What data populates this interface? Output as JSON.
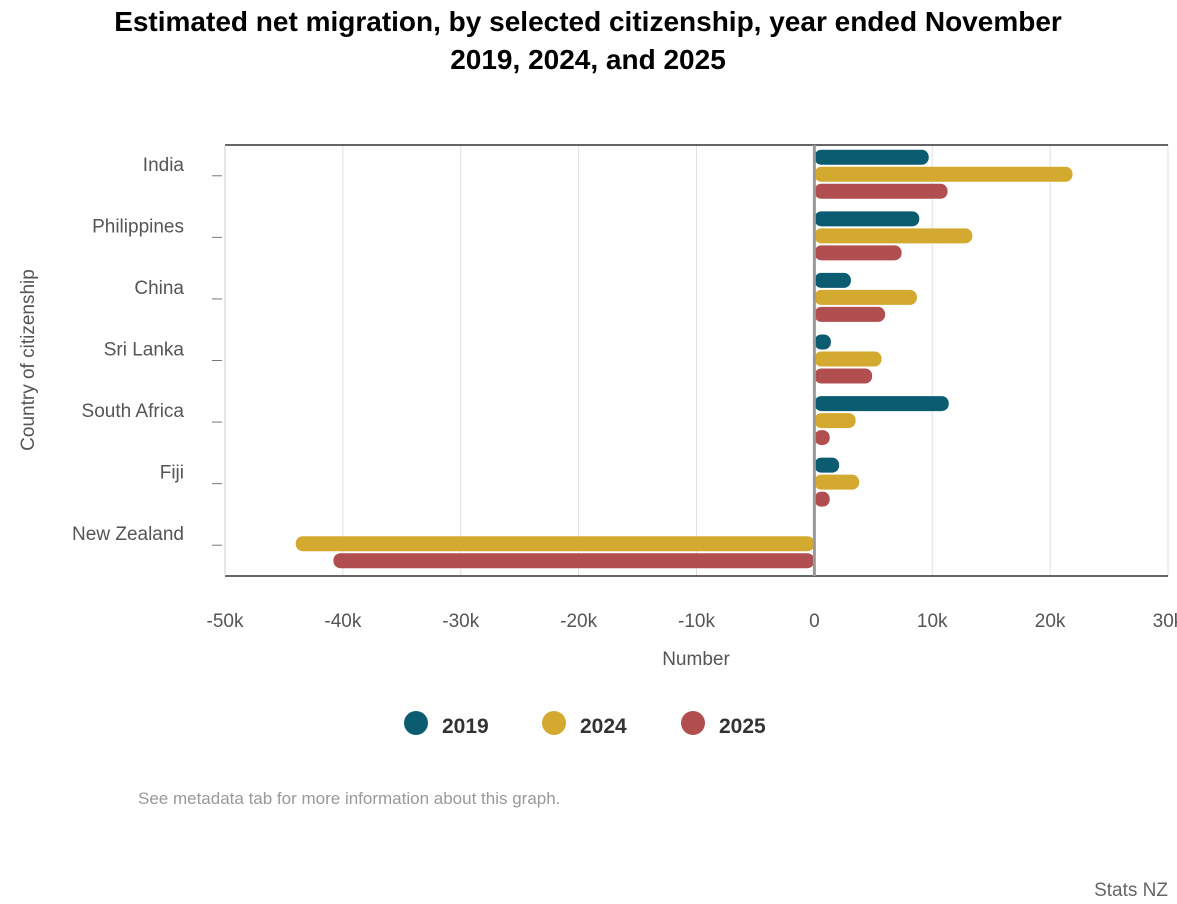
{
  "chart_data": {
    "type": "bar",
    "orientation": "horizontal",
    "title_lines": [
      "Estimated net migration, by selected citizenship, year ended November",
      "2019, 2024, and 2025"
    ],
    "xlabel": "Number",
    "ylabel": "Country of citizenship",
    "xlim": [
      -50000,
      30000
    ],
    "xticks": [
      -50000,
      -40000,
      -30000,
      -20000,
      -10000,
      0,
      10000,
      20000,
      30000
    ],
    "xtick_labels": [
      "-50k",
      "-40k",
      "-30k",
      "-20k",
      "-10k",
      "0",
      "10k",
      "20k",
      "30k"
    ],
    "categories": [
      "India",
      "Philippines",
      "China",
      "Sri Lanka",
      "South Africa",
      "Fiji",
      "New Zealand"
    ],
    "series": [
      {
        "name": "2019",
        "color": "#0b5c70",
        "values": [
          9700,
          8900,
          3100,
          1400,
          11400,
          2100,
          null
        ]
      },
      {
        "name": "2024",
        "color": "#d3aa2f",
        "values": [
          21900,
          13400,
          8700,
          5700,
          3500,
          3800,
          -44000
        ]
      },
      {
        "name": "2025",
        "color": "#b04e50",
        "values": [
          11300,
          7400,
          6000,
          4900,
          1300,
          1300,
          -40800
        ]
      }
    ],
    "grid": "vertical",
    "legend": "bottom-center"
  },
  "note": "See metadata tab for more information about this graph.",
  "credit": "Stats NZ"
}
